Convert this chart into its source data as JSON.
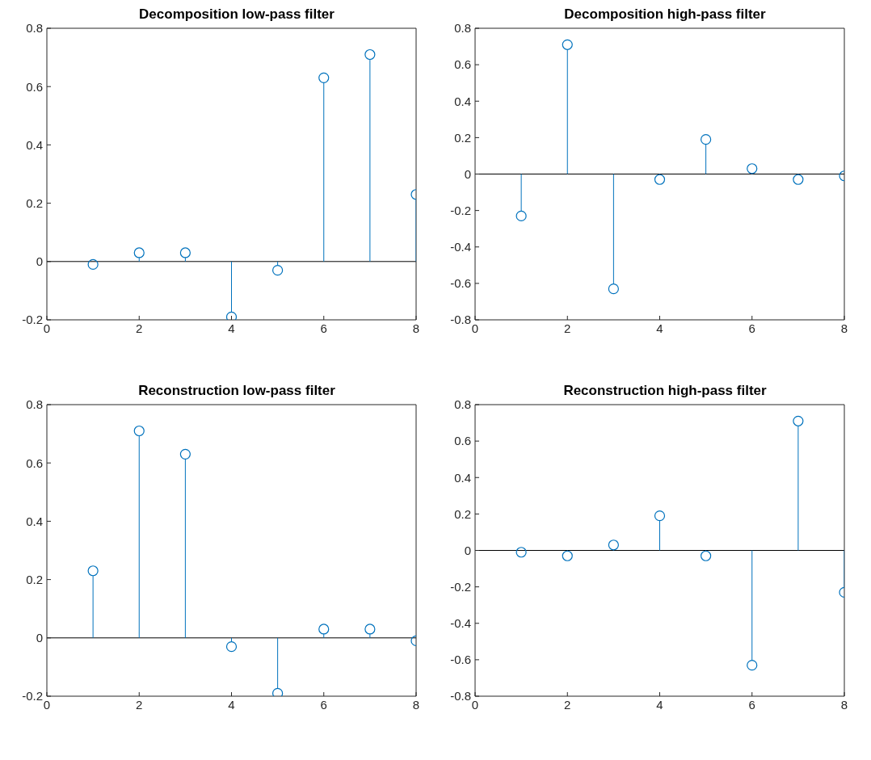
{
  "chart_data": [
    {
      "type": "lollipop",
      "title": "Decomposition low-pass filter",
      "x": [
        1,
        2,
        3,
        4,
        5,
        6,
        7,
        8
      ],
      "values": [
        -0.01,
        0.03,
        0.03,
        -0.19,
        -0.03,
        0.63,
        0.71,
        0.23
      ],
      "color": "#0072bd",
      "marker": "circle",
      "xlim": [
        0,
        8
      ],
      "xticks": [
        0,
        2,
        4,
        6,
        8
      ],
      "ylim": [
        -0.2,
        0.8
      ],
      "yticks": [
        -0.2,
        0,
        0.2,
        0.4,
        0.6,
        0.8
      ],
      "ref_lines": [
        {
          "axis": "y",
          "value": 0,
          "color": "#000000"
        }
      ]
    },
    {
      "type": "lollipop",
      "title": "Decomposition high-pass filter",
      "x": [
        1,
        2,
        3,
        4,
        5,
        6,
        7,
        8
      ],
      "values": [
        -0.23,
        0.71,
        -0.63,
        -0.03,
        0.19,
        0.03,
        -0.03,
        -0.01
      ],
      "color": "#0072bd",
      "marker": "circle",
      "xlim": [
        0,
        8
      ],
      "xticks": [
        0,
        2,
        4,
        6,
        8
      ],
      "ylim": [
        -0.8,
        0.8
      ],
      "yticks": [
        -0.8,
        -0.6,
        -0.4,
        -0.2,
        0,
        0.2,
        0.4,
        0.6,
        0.8
      ],
      "ref_lines": [
        {
          "axis": "y",
          "value": 0,
          "color": "#000000"
        }
      ]
    },
    {
      "type": "lollipop",
      "title": "Reconstruction low-pass filter",
      "x": [
        1,
        2,
        3,
        4,
        5,
        6,
        7,
        8
      ],
      "values": [
        0.23,
        0.71,
        0.63,
        -0.03,
        -0.19,
        0.03,
        0.03,
        -0.01
      ],
      "color": "#0072bd",
      "marker": "circle",
      "xlim": [
        0,
        8
      ],
      "xticks": [
        0,
        2,
        4,
        6,
        8
      ],
      "ylim": [
        -0.2,
        0.8
      ],
      "yticks": [
        -0.2,
        0,
        0.2,
        0.4,
        0.6,
        0.8
      ],
      "ref_lines": [
        {
          "axis": "y",
          "value": 0,
          "color": "#000000"
        }
      ]
    },
    {
      "type": "lollipop",
      "title": "Reconstruction high-pass filter",
      "x": [
        1,
        2,
        3,
        4,
        5,
        6,
        7,
        8
      ],
      "values": [
        -0.01,
        -0.03,
        0.03,
        0.19,
        -0.03,
        -0.63,
        0.71,
        -0.23
      ],
      "color": "#0072bd",
      "marker": "circle",
      "xlim": [
        0,
        8
      ],
      "xticks": [
        0,
        2,
        4,
        6,
        8
      ],
      "ylim": [
        -0.8,
        0.8
      ],
      "yticks": [
        -0.8,
        -0.6,
        -0.4,
        -0.2,
        0,
        0.2,
        0.4,
        0.6,
        0.8
      ],
      "ref_lines": [
        {
          "axis": "y",
          "value": 0,
          "color": "#000000"
        }
      ]
    }
  ]
}
